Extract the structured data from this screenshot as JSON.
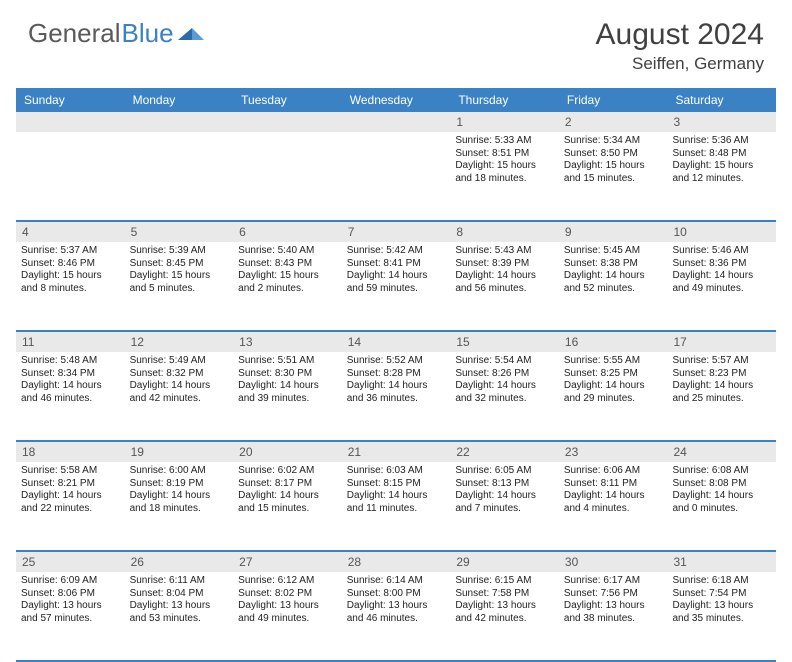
{
  "header": {
    "logo_part1": "General",
    "logo_part2": "Blue",
    "title": "August 2024",
    "location": "Seiffen, Germany"
  },
  "colors": {
    "brand_blue": "#3b82c4",
    "daynum_bg": "#e9e9e9",
    "text": "#404040"
  },
  "days_of_week": [
    "Sunday",
    "Monday",
    "Tuesday",
    "Wednesday",
    "Thursday",
    "Friday",
    "Saturday"
  ],
  "weeks": [
    {
      "nums": [
        "",
        "",
        "",
        "",
        "1",
        "2",
        "3"
      ],
      "cells": [
        {},
        {},
        {},
        {},
        {
          "sunrise": "Sunrise: 5:33 AM",
          "sunset": "Sunset: 8:51 PM",
          "daylight": "Daylight: 15 hours and 18 minutes."
        },
        {
          "sunrise": "Sunrise: 5:34 AM",
          "sunset": "Sunset: 8:50 PM",
          "daylight": "Daylight: 15 hours and 15 minutes."
        },
        {
          "sunrise": "Sunrise: 5:36 AM",
          "sunset": "Sunset: 8:48 PM",
          "daylight": "Daylight: 15 hours and 12 minutes."
        }
      ]
    },
    {
      "nums": [
        "4",
        "5",
        "6",
        "7",
        "8",
        "9",
        "10"
      ],
      "cells": [
        {
          "sunrise": "Sunrise: 5:37 AM",
          "sunset": "Sunset: 8:46 PM",
          "daylight": "Daylight: 15 hours and 8 minutes."
        },
        {
          "sunrise": "Sunrise: 5:39 AM",
          "sunset": "Sunset: 8:45 PM",
          "daylight": "Daylight: 15 hours and 5 minutes."
        },
        {
          "sunrise": "Sunrise: 5:40 AM",
          "sunset": "Sunset: 8:43 PM",
          "daylight": "Daylight: 15 hours and 2 minutes."
        },
        {
          "sunrise": "Sunrise: 5:42 AM",
          "sunset": "Sunset: 8:41 PM",
          "daylight": "Daylight: 14 hours and 59 minutes."
        },
        {
          "sunrise": "Sunrise: 5:43 AM",
          "sunset": "Sunset: 8:39 PM",
          "daylight": "Daylight: 14 hours and 56 minutes."
        },
        {
          "sunrise": "Sunrise: 5:45 AM",
          "sunset": "Sunset: 8:38 PM",
          "daylight": "Daylight: 14 hours and 52 minutes."
        },
        {
          "sunrise": "Sunrise: 5:46 AM",
          "sunset": "Sunset: 8:36 PM",
          "daylight": "Daylight: 14 hours and 49 minutes."
        }
      ]
    },
    {
      "nums": [
        "11",
        "12",
        "13",
        "14",
        "15",
        "16",
        "17"
      ],
      "cells": [
        {
          "sunrise": "Sunrise: 5:48 AM",
          "sunset": "Sunset: 8:34 PM",
          "daylight": "Daylight: 14 hours and 46 minutes."
        },
        {
          "sunrise": "Sunrise: 5:49 AM",
          "sunset": "Sunset: 8:32 PM",
          "daylight": "Daylight: 14 hours and 42 minutes."
        },
        {
          "sunrise": "Sunrise: 5:51 AM",
          "sunset": "Sunset: 8:30 PM",
          "daylight": "Daylight: 14 hours and 39 minutes."
        },
        {
          "sunrise": "Sunrise: 5:52 AM",
          "sunset": "Sunset: 8:28 PM",
          "daylight": "Daylight: 14 hours and 36 minutes."
        },
        {
          "sunrise": "Sunrise: 5:54 AM",
          "sunset": "Sunset: 8:26 PM",
          "daylight": "Daylight: 14 hours and 32 minutes."
        },
        {
          "sunrise": "Sunrise: 5:55 AM",
          "sunset": "Sunset: 8:25 PM",
          "daylight": "Daylight: 14 hours and 29 minutes."
        },
        {
          "sunrise": "Sunrise: 5:57 AM",
          "sunset": "Sunset: 8:23 PM",
          "daylight": "Daylight: 14 hours and 25 minutes."
        }
      ]
    },
    {
      "nums": [
        "18",
        "19",
        "20",
        "21",
        "22",
        "23",
        "24"
      ],
      "cells": [
        {
          "sunrise": "Sunrise: 5:58 AM",
          "sunset": "Sunset: 8:21 PM",
          "daylight": "Daylight: 14 hours and 22 minutes."
        },
        {
          "sunrise": "Sunrise: 6:00 AM",
          "sunset": "Sunset: 8:19 PM",
          "daylight": "Daylight: 14 hours and 18 minutes."
        },
        {
          "sunrise": "Sunrise: 6:02 AM",
          "sunset": "Sunset: 8:17 PM",
          "daylight": "Daylight: 14 hours and 15 minutes."
        },
        {
          "sunrise": "Sunrise: 6:03 AM",
          "sunset": "Sunset: 8:15 PM",
          "daylight": "Daylight: 14 hours and 11 minutes."
        },
        {
          "sunrise": "Sunrise: 6:05 AM",
          "sunset": "Sunset: 8:13 PM",
          "daylight": "Daylight: 14 hours and 7 minutes."
        },
        {
          "sunrise": "Sunrise: 6:06 AM",
          "sunset": "Sunset: 8:11 PM",
          "daylight": "Daylight: 14 hours and 4 minutes."
        },
        {
          "sunrise": "Sunrise: 6:08 AM",
          "sunset": "Sunset: 8:08 PM",
          "daylight": "Daylight: 14 hours and 0 minutes."
        }
      ]
    },
    {
      "nums": [
        "25",
        "26",
        "27",
        "28",
        "29",
        "30",
        "31"
      ],
      "cells": [
        {
          "sunrise": "Sunrise: 6:09 AM",
          "sunset": "Sunset: 8:06 PM",
          "daylight": "Daylight: 13 hours and 57 minutes."
        },
        {
          "sunrise": "Sunrise: 6:11 AM",
          "sunset": "Sunset: 8:04 PM",
          "daylight": "Daylight: 13 hours and 53 minutes."
        },
        {
          "sunrise": "Sunrise: 6:12 AM",
          "sunset": "Sunset: 8:02 PM",
          "daylight": "Daylight: 13 hours and 49 minutes."
        },
        {
          "sunrise": "Sunrise: 6:14 AM",
          "sunset": "Sunset: 8:00 PM",
          "daylight": "Daylight: 13 hours and 46 minutes."
        },
        {
          "sunrise": "Sunrise: 6:15 AM",
          "sunset": "Sunset: 7:58 PM",
          "daylight": "Daylight: 13 hours and 42 minutes."
        },
        {
          "sunrise": "Sunrise: 6:17 AM",
          "sunset": "Sunset: 7:56 PM",
          "daylight": "Daylight: 13 hours and 38 minutes."
        },
        {
          "sunrise": "Sunrise: 6:18 AM",
          "sunset": "Sunset: 7:54 PM",
          "daylight": "Daylight: 13 hours and 35 minutes."
        }
      ]
    }
  ]
}
